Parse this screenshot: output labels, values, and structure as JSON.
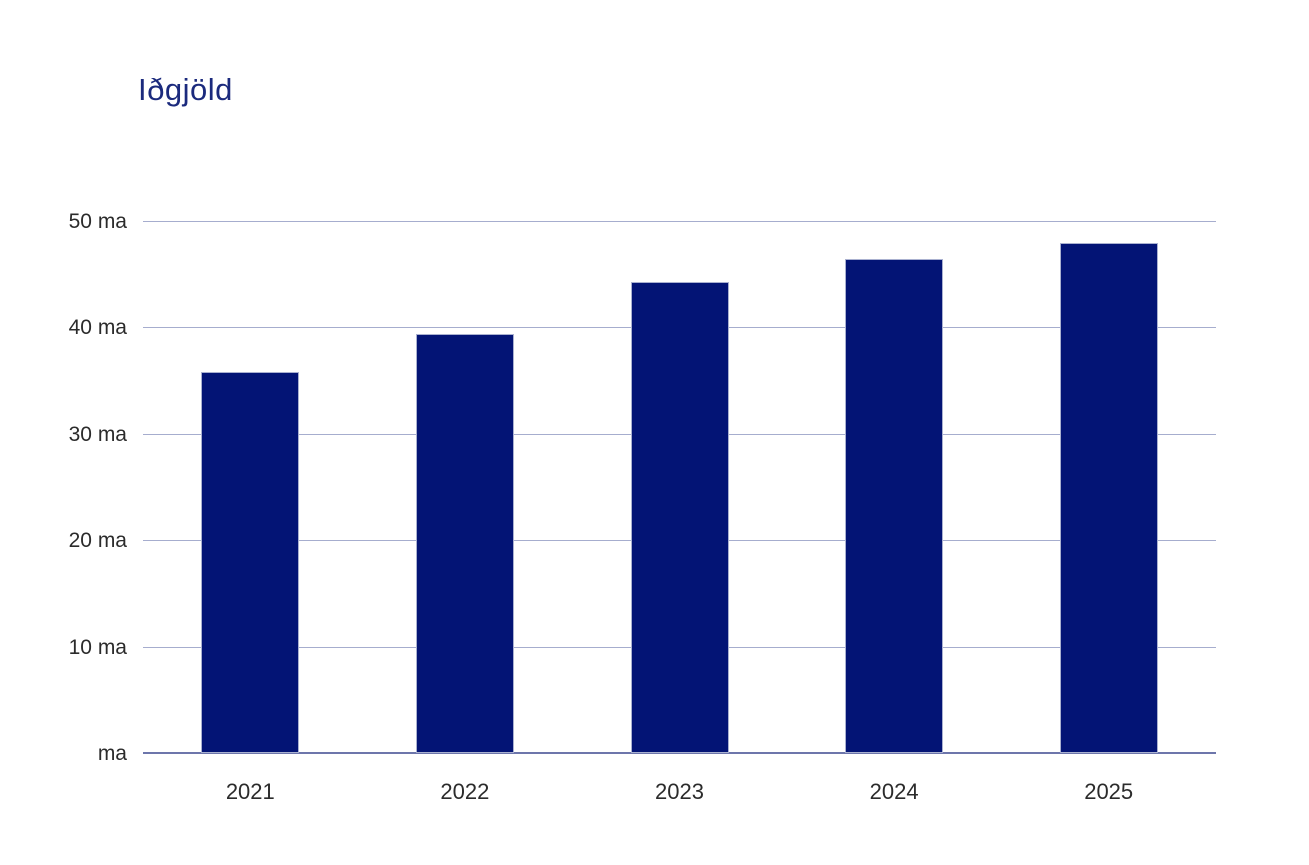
{
  "chart": {
    "title": "Iðgjöld",
    "colors": {
      "bar": "#031475",
      "bar_border": "#aab1d0",
      "gridline": "#a6adce",
      "axis_line": "#6d76ab",
      "label_text": "#2b2b2b",
      "title_text": "#1b2a7d",
      "background": "#ffffff"
    }
  },
  "chart_data": {
    "type": "bar",
    "title": "Iðgjöld",
    "categories": [
      "2021",
      "2022",
      "2023",
      "2024",
      "2025"
    ],
    "values": [
      35.8,
      39.4,
      44.3,
      46.4,
      47.9
    ],
    "unit": "ma",
    "xlabel": "",
    "ylabel": "",
    "ylim": [
      0,
      50
    ],
    "y_ticks": [
      0,
      10,
      20,
      30,
      40,
      50
    ],
    "y_tick_labels": [
      "ma",
      "10 ma",
      "20 ma",
      "30 ma",
      "40 ma",
      "50 ma"
    ],
    "grid": true,
    "legend": false
  }
}
